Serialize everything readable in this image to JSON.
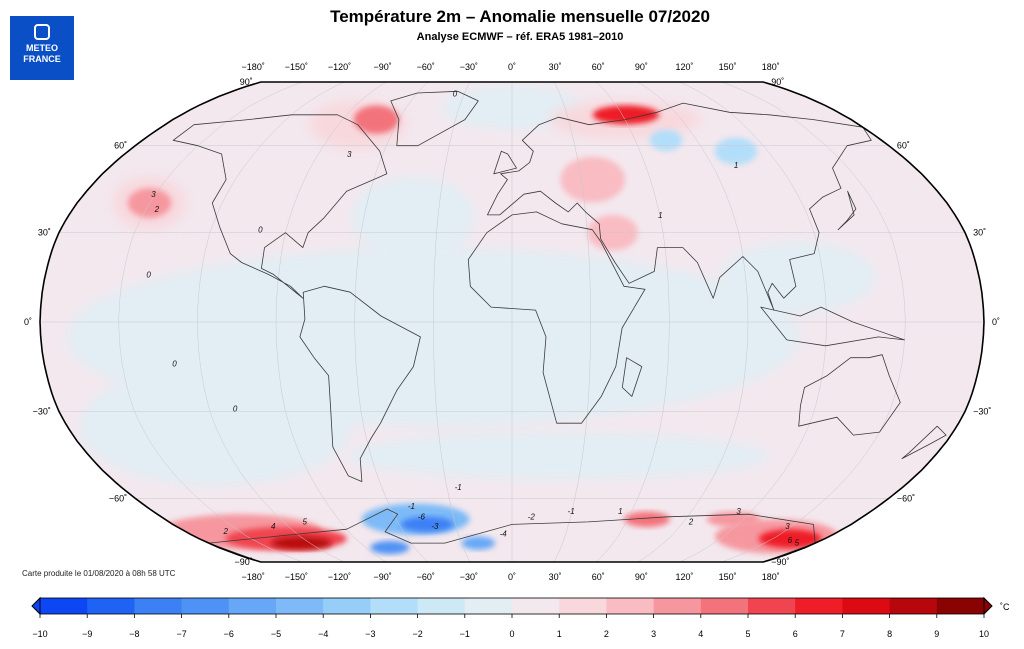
{
  "header": {
    "logo_line1": "METEO",
    "logo_line2": "FRANCE",
    "title": "Température 2m – Anomalie mensuelle 07/2020",
    "subtitle": "Analyse ECMWF – réf. ERA5 1981–2010"
  },
  "footer": {
    "credit": "Carte produite le 01/08/2020 à 08h 58 UTC"
  },
  "map": {
    "projection": "Robinson",
    "lon_labels": [
      "−180˚",
      "−150˚",
      "−120˚",
      "−90˚",
      "−60˚",
      "−30˚",
      "0˚",
      "30˚",
      "60˚",
      "90˚",
      "120˚",
      "150˚",
      "180˚"
    ],
    "lat_labels_left": [
      "90˚",
      "60˚",
      "30˚",
      "0˚",
      "−30˚",
      "−60˚",
      "−90˚"
    ],
    "lat_labels_right": [
      "90˚",
      "60˚",
      "30˚",
      "0˚",
      "−30˚",
      "−60˚",
      "−90˚"
    ],
    "contour_labels": [
      "0",
      "1",
      "2",
      "3",
      "4",
      "5",
      "6",
      "-1",
      "-2",
      "-3",
      "-4",
      "-6"
    ]
  },
  "colorbar": {
    "unit": "˚C",
    "ticks": [
      "−10",
      "−9",
      "−8",
      "−7",
      "−6",
      "−5",
      "−4",
      "−3",
      "−2",
      "−1",
      "0",
      "1",
      "2",
      "3",
      "4",
      "5",
      "6",
      "7",
      "8",
      "9",
      "10"
    ],
    "colors": [
      "#0d47f5",
      "#1f63f5",
      "#3c80f5",
      "#4f92f5",
      "#66a8f7",
      "#7dbaf7",
      "#97cef8",
      "#b3def9",
      "#cde9f6",
      "#e2eef4",
      "#f3e8ee",
      "#f8d8dd",
      "#f9bcc3",
      "#f6979f",
      "#f3737c",
      "#f04450",
      "#ee1d28",
      "#dc0a12",
      "#b8070c",
      "#8a0303"
    ]
  }
}
